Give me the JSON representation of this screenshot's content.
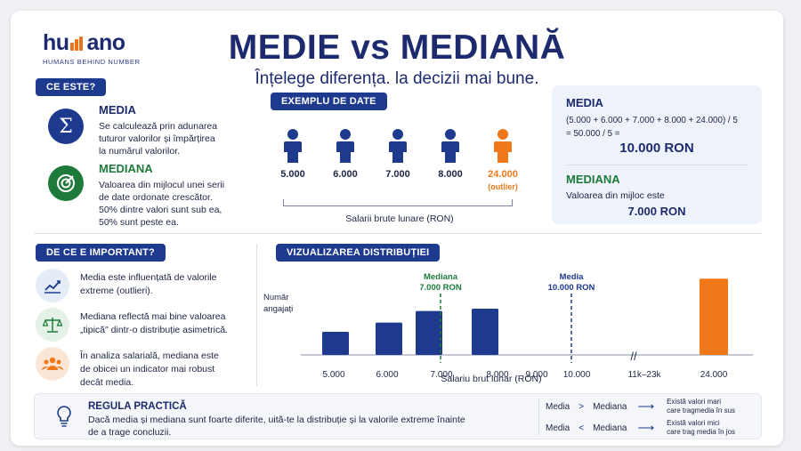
{
  "brand": {
    "name_left": "hu",
    "name_right": "ano",
    "tagline": "HUMANS BEHIND NUMBER"
  },
  "title": "MEDIE vs MEDIANĂ",
  "subtitle": "Înțelege diferența. la decizii mai bune.",
  "what": {
    "pill": "CE ESTE?",
    "media": {
      "title": "MEDIA",
      "text": [
        "Se calculează prin adunarea",
        "tuturor valorilor și împărțirea",
        "la numărul valorilor."
      ]
    },
    "mediana": {
      "title": "MEDIANA",
      "text": [
        "Valoarea din mijlocul unei serii",
        "de date ordonate crescător.",
        "50% dintre valori sunt sub ea,",
        "50% sunt peste ea."
      ]
    }
  },
  "example": {
    "pill": "EXEMPLU DE DATE",
    "values": [
      "5.000",
      "6.000",
      "7.000",
      "8.000",
      "24.000"
    ],
    "outlier_label": "(outlier)",
    "axis_label": "Salarii brute lunare (RON)"
  },
  "calc": {
    "media_title": "MEDIA",
    "formula": "(5.000 + 6.000 + 7.000 + 8.000 + 24.000) / 5",
    "formula2": "= 50.000 / 5 =",
    "media_result": "10.000 RON",
    "mediana_title": "MEDIANA",
    "mediana_text": "Valoarea din mijloc este",
    "mediana_result": "7.000 RON"
  },
  "importance": {
    "pill": "DE CE E IMPORTANT?",
    "items": [
      {
        "lines": [
          "Media este influențată de valorile",
          "extreme (outlieri)."
        ]
      },
      {
        "lines": [
          "Mediana reflectă mai bine valoarea",
          "„tipică\" dintr-o distribuție asimetrică."
        ]
      },
      {
        "lines": [
          "În analiza salarială, mediana este",
          "de obicei un indicator mai robust",
          "decât media."
        ]
      }
    ]
  },
  "chart_data": {
    "type": "bar",
    "title": "VIZUALIZAREA DISTRIBUȚIEI",
    "ylabel": "Număr angajați",
    "xlabel": "Salariu brut lunar (RON)",
    "categories": [
      "5.000",
      "6.000",
      "7.000",
      "8.000",
      "24.000"
    ],
    "values": [
      1,
      1.4,
      1.9,
      2,
      3.3
    ],
    "colors": [
      "#1d3a8f",
      "#1d3a8f",
      "#1d3a8f",
      "#1d3a8f",
      "#f07818"
    ],
    "x_ticks": [
      "5.000",
      "6.000",
      "7.000",
      "8.000",
      "9.000",
      "10.000",
      "11k–23k",
      "24.000"
    ],
    "markers": [
      {
        "name": "Mediana",
        "value": "7.000 RON",
        "color": "#1d7a3a"
      },
      {
        "name": "Media",
        "value": "10.000 RON",
        "color": "#1d3a8f"
      }
    ],
    "axis_break": "//"
  },
  "rule": {
    "title": "REGULA PRACTICĂ",
    "text": [
      "Dacă media și mediana sunt foarte diferite, uită-te la distribuție și la valorile extreme înainte",
      "de a trage concluzii."
    ],
    "rows": [
      {
        "left": "Media",
        "op": ">",
        "right": "Mediana",
        "arrow": "⟶",
        "note": [
          "Există valori mari",
          "care tragmedia în sus"
        ]
      },
      {
        "left": "Media",
        "op": "<",
        "right": "Mediana",
        "arrow": "⟶",
        "note": [
          "Există valori mici",
          "care trag media în jos"
        ]
      }
    ]
  },
  "colors": {
    "navy": "#1d3a8f",
    "orange": "#f07818",
    "green": "#1d7a3a"
  }
}
